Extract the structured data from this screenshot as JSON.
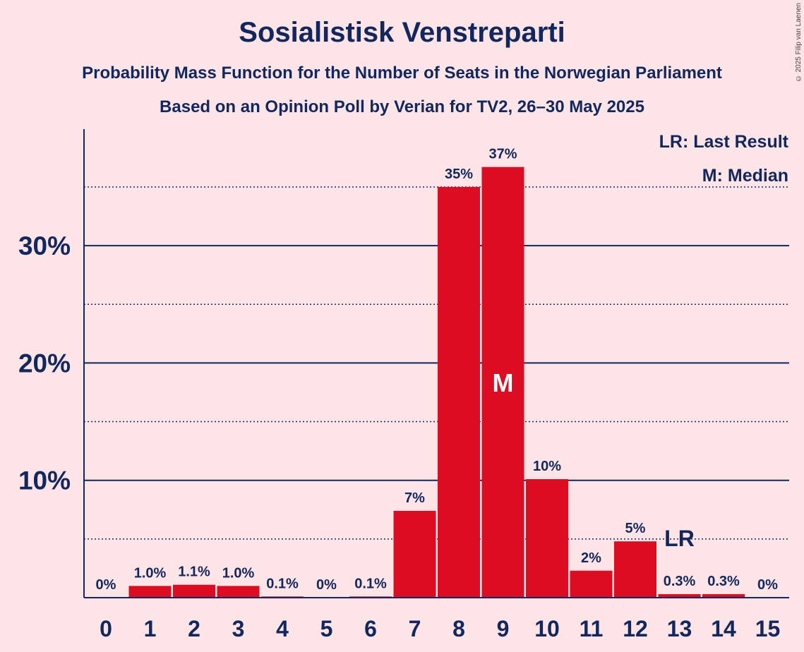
{
  "header": {
    "title": "Sosialistisk Venstreparti",
    "subtitle": "Probability Mass Function for the Number of Seats in the Norwegian Parliament",
    "subtitle2": "Based on an Opinion Poll by Verian for TV2, 26–30 May 2025",
    "copyright": "© 2025 Filip van Laenen"
  },
  "legend": {
    "lr": "LR: Last Result",
    "median": "M: Median"
  },
  "colors": {
    "background": "#fde4e6",
    "bar": "#dc0c22",
    "text": "#12275e"
  },
  "chart_data": {
    "type": "bar",
    "title": "Sosialistisk Venstreparti",
    "categories": [
      "0",
      "1",
      "2",
      "3",
      "4",
      "5",
      "6",
      "7",
      "8",
      "9",
      "10",
      "11",
      "12",
      "13",
      "14",
      "15"
    ],
    "values": [
      0,
      1.0,
      1.1,
      1.0,
      0.1,
      0,
      0.1,
      7.4,
      35.0,
      36.7,
      10.1,
      2.3,
      4.8,
      0.3,
      0.3,
      0
    ],
    "data_labels": [
      "0%",
      "1.0%",
      "1.1%",
      "1.0%",
      "0.1%",
      "0%",
      "0.1%",
      "7%",
      "35%",
      "37%",
      "10%",
      "2%",
      "5%",
      "0.3%",
      "0.3%",
      "0%"
    ],
    "ylim": [
      0,
      40
    ],
    "y_ticks": [
      10,
      20,
      30
    ],
    "y_tick_labels": [
      "10%",
      "20%",
      "30%"
    ],
    "dotted_gridlines": [
      5,
      15,
      25,
      35
    ],
    "median_seat": "9",
    "median_marker": "M",
    "last_result_seat": "13",
    "last_result_marker": "LR",
    "legend_position": "top-right"
  }
}
